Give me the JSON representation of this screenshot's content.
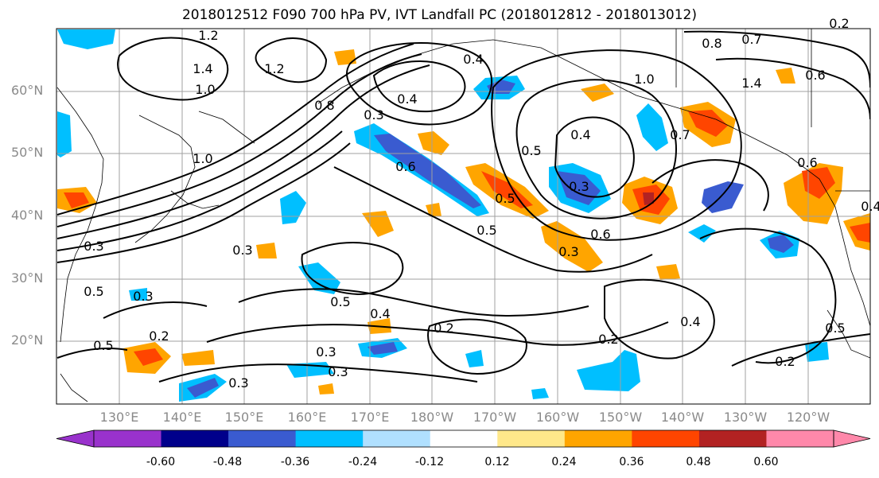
{
  "title": "2018012512 F090 700 hPa PV, IVT Landfall PC (2018012812 - 2018013012)",
  "lat_labels": [
    "60°N",
    "50°N",
    "40°N",
    "30°N",
    "20°N"
  ],
  "lon_labels": [
    "130°E",
    "140°E",
    "150°E",
    "160°E",
    "170°E",
    "180°W",
    "170°W",
    "160°W",
    "150°W",
    "140°W",
    "130°W",
    "120°W"
  ],
  "colorbar": {
    "colors": [
      "#9932cc",
      "#00008b",
      "#3a5bd0",
      "#00bfff",
      "#b0e0ff",
      "#ffffff",
      "#ffe88a",
      "#ffa500",
      "#ff4500",
      "#b22222",
      "#ff88aa"
    ],
    "labels": [
      "-0.60",
      "-0.48",
      "-0.36",
      "-0.24",
      "-0.12",
      "0.12",
      "0.24",
      "0.36",
      "0.48",
      "0.60"
    ],
    "bounds": [
      -0.6,
      -0.48,
      -0.36,
      -0.24,
      -0.12,
      0.12,
      0.24,
      0.36,
      0.48,
      0.6
    ],
    "extend": "both"
  },
  "contour_labels": [
    "1.2",
    "1.4",
    "1.2",
    "1.0",
    "0.8",
    "0.7",
    "0.8",
    "0.6",
    "0.4",
    "0.3",
    "0.4",
    "1.0",
    "1.4",
    "1.0",
    "0.5",
    "0.4",
    "0.7",
    "0.6",
    "0.5",
    "0.3",
    "0.5",
    "0.6",
    "0.6",
    "0.3",
    "0.5",
    "0.5",
    "0.3",
    "0.4",
    "0.3",
    "0.3",
    "0.5",
    "0.2",
    "0.2",
    "0.3",
    "0.3",
    "0.4",
    "0.2",
    "0.5",
    "0.4",
    "0.3",
    "0.2",
    "0.2"
  ]
}
